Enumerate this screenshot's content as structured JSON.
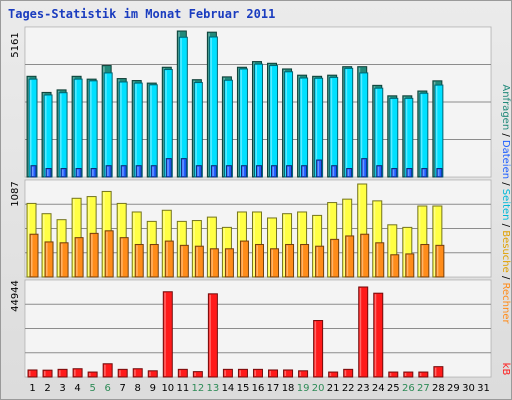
{
  "chart_data": {
    "type": "bar",
    "title": "Tages-Statistik im Monat Februar 2011",
    "categories": [
      "1",
      "2",
      "3",
      "4",
      "5",
      "6",
      "7",
      "8",
      "9",
      "10",
      "11",
      "12",
      "13",
      "14",
      "15",
      "16",
      "17",
      "18",
      "19",
      "20",
      "21",
      "22",
      "23",
      "24",
      "25",
      "26",
      "27",
      "28",
      "29",
      "30",
      "31"
    ],
    "weekend_days": [
      5,
      6,
      12,
      13,
      19,
      20,
      26,
      27
    ],
    "colors": {
      "title": "#1a3cbf",
      "axis_text": "#000000",
      "weekend_text": "#2e8b57",
      "anfragen": "#21897a",
      "dateien": "#00e0ff",
      "seiten": "#1f5fff",
      "besuche": "#ffff44",
      "rechner": "#ff8c1a",
      "kb": "#ff1a1a"
    },
    "right_label": {
      "anfragen": "Anfragen",
      "sep1": " / ",
      "dateien": "Dateien",
      "sep2": " / ",
      "seiten": "Seiten",
      "sep3": " / ",
      "besuche": "Besuche",
      "sep4": " / ",
      "rechner": "Rechner",
      "kb": "kB"
    },
    "panels": [
      {
        "id": "hits",
        "max_label": "5161",
        "ymax": 5161,
        "series": [
          {
            "key": "anfragen",
            "values": [
              3560,
              2990,
              3080,
              3560,
              3460,
              3940,
              3480,
              3410,
              3320,
              3880,
              5161,
              3440,
              5120,
              3540,
              3880,
              4080,
              4020,
              3820,
              3600,
              3560,
              3600,
              3900,
              3900,
              3240,
              2870,
              2870,
              3040,
              3400,
              null,
              null,
              null
            ]
          },
          {
            "key": "dateien",
            "values": [
              3460,
              2900,
              2980,
              3460,
              3400,
              3680,
              3360,
              3320,
              3260,
              3800,
              4940,
              3340,
              4950,
              3420,
              3820,
              3990,
              3940,
              3720,
              3500,
              3490,
              3520,
              3840,
              3680,
              3140,
              2780,
              2780,
              2960,
              3250,
              null,
              null,
              null
            ]
          },
          {
            "key": "seiten",
            "values": [
              400,
              300,
              300,
              300,
              300,
              400,
              400,
              400,
              400,
              650,
              650,
              400,
              400,
              400,
              400,
              400,
              400,
              400,
              400,
              600,
              400,
              300,
              650,
              400,
              300,
              300,
              300,
              300,
              null,
              null,
              null
            ]
          }
        ]
      },
      {
        "id": "visits",
        "max_label": "1087",
        "ymax": 1087,
        "series": [
          {
            "key": "besuche",
            "values": [
              860,
              740,
              670,
              920,
              940,
              1000,
              860,
              760,
              650,
              780,
              650,
              660,
              700,
              580,
              760,
              760,
              690,
              740,
              760,
              720,
              870,
              910,
              1087,
              890,
              610,
              580,
              830,
              830,
              null,
              null,
              null
            ]
          },
          {
            "key": "rechner",
            "values": [
              500,
              410,
              400,
              460,
              510,
              540,
              460,
              380,
              380,
              420,
              370,
              360,
              330,
              330,
              420,
              380,
              330,
              380,
              380,
              360,
              440,
              480,
              500,
              400,
              260,
              270,
              380,
              370,
              null,
              null,
              null
            ]
          }
        ]
      },
      {
        "id": "kb",
        "max_label": "44944",
        "ymax": 44944,
        "series": [
          {
            "key": "kb",
            "values": [
              3400,
              3300,
              3700,
              4000,
              2400,
              6400,
              3700,
              4000,
              3000,
              41200,
              3700,
              2600,
              40200,
              3700,
              3700,
              3700,
              3400,
              3400,
              3000,
              27300,
              2400,
              3700,
              43500,
              40500,
              2400,
              2400,
              2400,
              5000,
              null,
              null,
              null
            ]
          }
        ]
      }
    ]
  }
}
